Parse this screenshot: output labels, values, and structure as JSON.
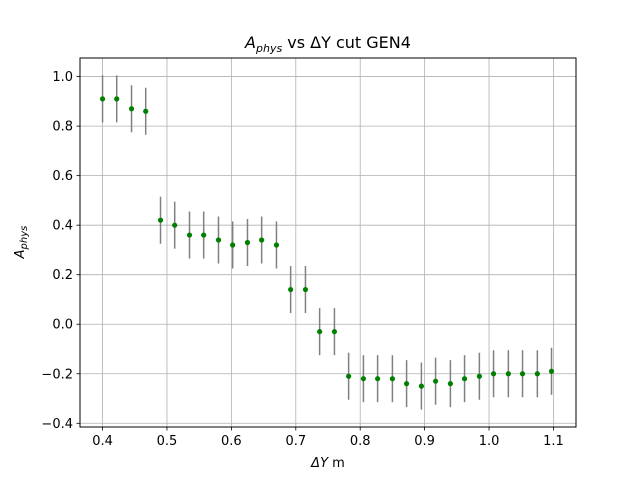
{
  "chart_data": {
    "type": "scatter",
    "title_main": "A",
    "title_sub": "phys",
    "title_rest": " vs ΔY cut GEN4",
    "xlabel_main": "ΔY",
    "xlabel_rest": " m",
    "ylabel_main": "A",
    "ylabel_sub": "phys",
    "xlim": [
      0.365,
      1.135
    ],
    "ylim": [
      -0.415,
      1.075
    ],
    "xticks": [
      0.4,
      0.5,
      0.6,
      0.7,
      0.8,
      0.9,
      1.0,
      1.1
    ],
    "xtick_labels": [
      "0.4",
      "0.5",
      "0.6",
      "0.7",
      "0.8",
      "0.9",
      "1.0",
      "1.1"
    ],
    "yticks": [
      -0.4,
      -0.2,
      0.0,
      0.2,
      0.4,
      0.6,
      0.8,
      1.0
    ],
    "ytick_labels": [
      "−0.4",
      "−0.2",
      "0.0",
      "0.2",
      "0.4",
      "0.6",
      "0.8",
      "1.0"
    ],
    "grid": true,
    "marker_color": "#008000",
    "errorbar_color": "#808080",
    "series": [
      {
        "x": [
          0.4,
          0.422,
          0.445,
          0.467,
          0.49,
          0.512,
          0.535,
          0.557,
          0.58,
          0.602,
          0.625,
          0.647,
          0.67,
          0.692,
          0.715,
          0.737,
          0.76,
          0.782,
          0.805,
          0.827,
          0.85,
          0.872,
          0.895,
          0.917,
          0.94,
          0.962,
          0.985,
          1.007,
          1.03,
          1.052,
          1.075,
          1.097
        ],
        "y": [
          0.91,
          0.91,
          0.87,
          0.86,
          0.42,
          0.4,
          0.36,
          0.36,
          0.34,
          0.32,
          0.33,
          0.34,
          0.32,
          0.14,
          0.14,
          -0.03,
          -0.03,
          -0.21,
          -0.22,
          -0.22,
          -0.22,
          -0.24,
          -0.25,
          -0.23,
          -0.24,
          -0.22,
          -0.21,
          -0.2,
          -0.2,
          -0.2,
          -0.2,
          -0.19
        ],
        "yerr": [
          0.095,
          0.095,
          0.095,
          0.095,
          0.095,
          0.095,
          0.095,
          0.095,
          0.095,
          0.095,
          0.095,
          0.095,
          0.095,
          0.095,
          0.095,
          0.095,
          0.095,
          0.095,
          0.095,
          0.095,
          0.095,
          0.095,
          0.095,
          0.095,
          0.095,
          0.095,
          0.095,
          0.095,
          0.095,
          0.095,
          0.095,
          0.095
        ]
      }
    ]
  }
}
